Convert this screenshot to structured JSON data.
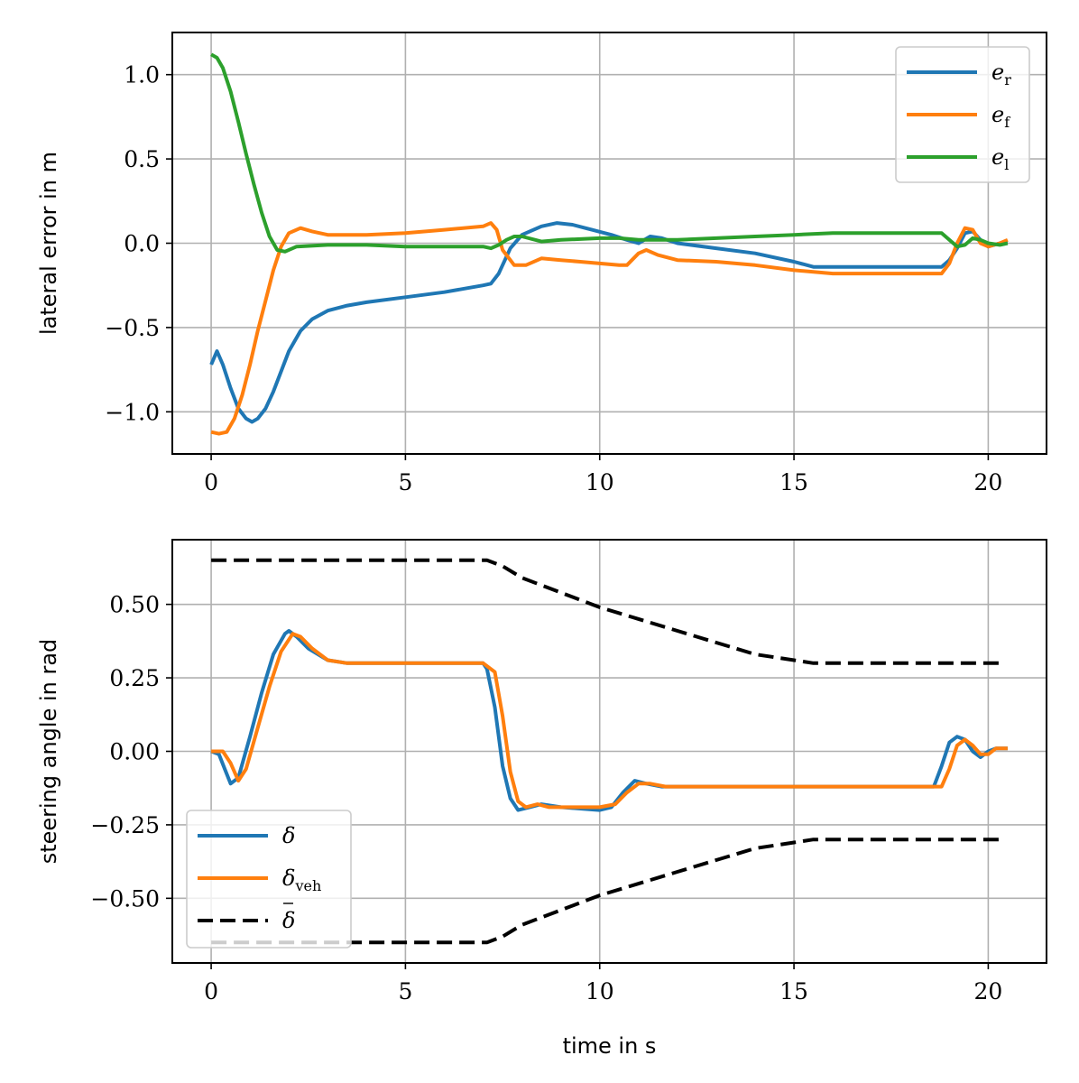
{
  "chart_data": [
    {
      "type": "line",
      "xlabel": "",
      "ylabel": "lateral error in m",
      "xlim": [
        -1,
        21.5
      ],
      "ylim": [
        -1.25,
        1.25
      ],
      "xticks": [
        0,
        5,
        10,
        15,
        20
      ],
      "yticks": [
        -1.0,
        -0.5,
        0.0,
        0.5,
        1.0
      ],
      "xtick_labels": [
        "0",
        "5",
        "10",
        "15",
        "20"
      ],
      "ytick_labels": [
        "−1.0",
        "−0.5",
        "0.0",
        "0.5",
        "1.0"
      ],
      "grid": true,
      "legend_position": "top-right",
      "series": [
        {
          "name": "e_r",
          "legend": {
            "main": "e",
            "sub": "r"
          },
          "color": "#1f77b4",
          "dash": "solid",
          "x": [
            0,
            0.15,
            0.3,
            0.5,
            0.7,
            0.9,
            1.05,
            1.2,
            1.4,
            1.6,
            1.8,
            2.0,
            2.3,
            2.6,
            3.0,
            3.5,
            4.0,
            5.0,
            6.0,
            7.0,
            7.2,
            7.4,
            7.7,
            8.0,
            8.5,
            8.9,
            9.3,
            9.8,
            10.3,
            10.7,
            11.0,
            11.3,
            11.6,
            12.0,
            13.0,
            14.0,
            15.0,
            15.5,
            16.0,
            17.0,
            18.0,
            18.8,
            19.0,
            19.2,
            19.4,
            19.6,
            19.8,
            20.0,
            20.3,
            20.5
          ],
          "y": [
            -0.72,
            -0.64,
            -0.72,
            -0.86,
            -0.98,
            -1.04,
            -1.06,
            -1.04,
            -0.98,
            -0.88,
            -0.76,
            -0.64,
            -0.52,
            -0.45,
            -0.4,
            -0.37,
            -0.35,
            -0.32,
            -0.29,
            -0.25,
            -0.24,
            -0.18,
            -0.03,
            0.05,
            0.1,
            0.12,
            0.11,
            0.08,
            0.05,
            0.02,
            0.0,
            0.04,
            0.03,
            0.0,
            -0.03,
            -0.06,
            -0.11,
            -0.14,
            -0.14,
            -0.14,
            -0.14,
            -0.14,
            -0.1,
            -0.03,
            0.06,
            0.07,
            0.02,
            -0.02,
            0.0,
            0.0
          ]
        },
        {
          "name": "e_f",
          "legend": {
            "main": "e",
            "sub": "f"
          },
          "color": "#ff7f0e",
          "dash": "solid",
          "x": [
            0,
            0.2,
            0.4,
            0.6,
            0.8,
            1.0,
            1.2,
            1.4,
            1.6,
            1.8,
            2.0,
            2.3,
            2.6,
            3.0,
            4.0,
            5.0,
            6.0,
            7.0,
            7.2,
            7.35,
            7.5,
            7.8,
            8.1,
            8.5,
            9.0,
            9.5,
            10.0,
            10.5,
            10.7,
            11.0,
            11.2,
            11.5,
            12.0,
            13.0,
            14.0,
            15.0,
            16.0,
            17.0,
            18.0,
            18.8,
            19.0,
            19.2,
            19.4,
            19.6,
            19.8,
            20.0,
            20.3,
            20.5
          ],
          "y": [
            -1.12,
            -1.13,
            -1.12,
            -1.04,
            -0.9,
            -0.72,
            -0.52,
            -0.34,
            -0.16,
            -0.02,
            0.06,
            0.09,
            0.07,
            0.05,
            0.05,
            0.06,
            0.08,
            0.1,
            0.12,
            0.08,
            -0.04,
            -0.13,
            -0.13,
            -0.09,
            -0.1,
            -0.11,
            -0.12,
            -0.13,
            -0.13,
            -0.06,
            -0.04,
            -0.07,
            -0.1,
            -0.11,
            -0.13,
            -0.16,
            -0.18,
            -0.18,
            -0.18,
            -0.18,
            -0.12,
            0.0,
            0.09,
            0.08,
            0.0,
            -0.02,
            0.0,
            0.02
          ]
        },
        {
          "name": "e_l",
          "legend": {
            "main": "e",
            "sub": "l"
          },
          "color": "#2ca02c",
          "dash": "solid",
          "x": [
            0,
            0.15,
            0.3,
            0.5,
            0.7,
            0.9,
            1.1,
            1.3,
            1.5,
            1.7,
            1.9,
            2.2,
            3.0,
            4.0,
            5.0,
            6.0,
            7.0,
            7.2,
            7.4,
            7.6,
            7.8,
            8.0,
            8.5,
            9.0,
            10.0,
            10.5,
            11.0,
            11.5,
            12.0,
            13.0,
            14.0,
            15.0,
            16.0,
            17.0,
            18.0,
            18.8,
            19.0,
            19.2,
            19.4,
            19.6,
            19.8,
            20.0,
            20.3,
            20.5
          ],
          "y": [
            1.12,
            1.1,
            1.04,
            0.9,
            0.72,
            0.53,
            0.35,
            0.18,
            0.04,
            -0.04,
            -0.05,
            -0.02,
            -0.01,
            -0.01,
            -0.02,
            -0.02,
            -0.02,
            -0.03,
            -0.01,
            0.02,
            0.04,
            0.04,
            0.01,
            0.02,
            0.03,
            0.03,
            0.02,
            0.02,
            0.02,
            0.03,
            0.04,
            0.05,
            0.06,
            0.06,
            0.06,
            0.06,
            0.02,
            -0.02,
            -0.01,
            0.03,
            0.02,
            0.0,
            -0.01,
            0.0
          ]
        }
      ]
    },
    {
      "type": "line",
      "xlabel": "time in s",
      "ylabel": "steering angle in rad",
      "xlim": [
        -1,
        21.5
      ],
      "ylim": [
        -0.72,
        0.72
      ],
      "xticks": [
        0,
        5,
        10,
        15,
        20
      ],
      "yticks": [
        -0.5,
        -0.25,
        0.0,
        0.25,
        0.5
      ],
      "xtick_labels": [
        "0",
        "5",
        "10",
        "15",
        "20"
      ],
      "ytick_labels": [
        "−0.50",
        "−0.25",
        "0.00",
        "0.25",
        "0.50"
      ],
      "grid": true,
      "legend_position": "bottom-left",
      "series": [
        {
          "name": "δ",
          "legend": {
            "main": "δ",
            "sub": "",
            "bar": false
          },
          "color": "#1f77b4",
          "dash": "solid",
          "x": [
            0,
            0.2,
            0.35,
            0.5,
            0.7,
            1.0,
            1.3,
            1.6,
            1.9,
            2.0,
            2.2,
            2.5,
            3.0,
            3.5,
            4.0,
            5.0,
            6.0,
            7.0,
            7.1,
            7.3,
            7.5,
            7.7,
            7.9,
            8.2,
            8.5,
            9.0,
            10.0,
            10.3,
            10.6,
            10.9,
            11.2,
            11.6,
            12.0,
            13.0,
            14.0,
            15.0,
            16.0,
            17.0,
            18.0,
            18.6,
            18.8,
            19.0,
            19.2,
            19.4,
            19.6,
            19.8,
            20.0,
            20.2,
            20.5
          ],
          "y": [
            0.0,
            -0.01,
            -0.06,
            -0.11,
            -0.09,
            0.05,
            0.2,
            0.33,
            0.4,
            0.41,
            0.39,
            0.35,
            0.31,
            0.3,
            0.3,
            0.3,
            0.3,
            0.3,
            0.28,
            0.15,
            -0.05,
            -0.16,
            -0.2,
            -0.19,
            -0.18,
            -0.19,
            -0.2,
            -0.19,
            -0.14,
            -0.1,
            -0.11,
            -0.12,
            -0.12,
            -0.12,
            -0.12,
            -0.12,
            -0.12,
            -0.12,
            -0.12,
            -0.12,
            -0.05,
            0.03,
            0.05,
            0.04,
            0.0,
            -0.02,
            0.0,
            0.01,
            0.01
          ]
        },
        {
          "name": "δ_veh",
          "legend": {
            "main": "δ",
            "sub": "veh",
            "bar": false
          },
          "color": "#ff7f0e",
          "dash": "solid",
          "x": [
            0,
            0.3,
            0.5,
            0.7,
            0.9,
            1.2,
            1.5,
            1.8,
            2.1,
            2.3,
            2.6,
            3.0,
            3.5,
            4.0,
            5.0,
            6.0,
            7.0,
            7.3,
            7.5,
            7.7,
            7.9,
            8.1,
            8.4,
            8.7,
            9.0,
            10.0,
            10.4,
            10.7,
            11.0,
            11.3,
            11.7,
            12.0,
            13.0,
            14.0,
            15.0,
            16.0,
            17.0,
            18.0,
            18.8,
            19.0,
            19.2,
            19.4,
            19.6,
            19.8,
            20.0,
            20.2,
            20.5
          ],
          "y": [
            0.0,
            0.0,
            -0.04,
            -0.1,
            -0.06,
            0.08,
            0.22,
            0.34,
            0.4,
            0.39,
            0.35,
            0.31,
            0.3,
            0.3,
            0.3,
            0.3,
            0.3,
            0.27,
            0.12,
            -0.07,
            -0.17,
            -0.19,
            -0.18,
            -0.19,
            -0.19,
            -0.19,
            -0.18,
            -0.14,
            -0.11,
            -0.11,
            -0.12,
            -0.12,
            -0.12,
            -0.12,
            -0.12,
            -0.12,
            -0.12,
            -0.12,
            -0.12,
            -0.06,
            0.02,
            0.04,
            0.02,
            -0.01,
            -0.01,
            0.01,
            0.01
          ]
        },
        {
          "name": "δ̄ upper",
          "legend": {
            "main": "δ",
            "sub": "",
            "bar": true
          },
          "color": "#000000",
          "dash": "dashed",
          "x": [
            0,
            7.1,
            7.5,
            8.0,
            9.0,
            10.0,
            11.0,
            12.0,
            13.0,
            14.0,
            15.0,
            15.5,
            16.0,
            18.0,
            20.3
          ],
          "y": [
            0.65,
            0.65,
            0.63,
            0.59,
            0.54,
            0.49,
            0.45,
            0.41,
            0.37,
            0.33,
            0.31,
            0.3,
            0.3,
            0.3,
            0.3
          ]
        },
        {
          "name": "δ̄ lower",
          "legend": null,
          "color": "#000000",
          "dash": "dashed",
          "x": [
            0,
            7.1,
            7.5,
            8.0,
            9.0,
            10.0,
            11.0,
            12.0,
            13.0,
            14.0,
            15.0,
            15.5,
            16.0,
            18.0,
            20.3
          ],
          "y": [
            -0.65,
            -0.65,
            -0.63,
            -0.59,
            -0.54,
            -0.49,
            -0.45,
            -0.41,
            -0.37,
            -0.33,
            -0.31,
            -0.3,
            -0.3,
            -0.3,
            -0.3
          ]
        }
      ]
    }
  ]
}
